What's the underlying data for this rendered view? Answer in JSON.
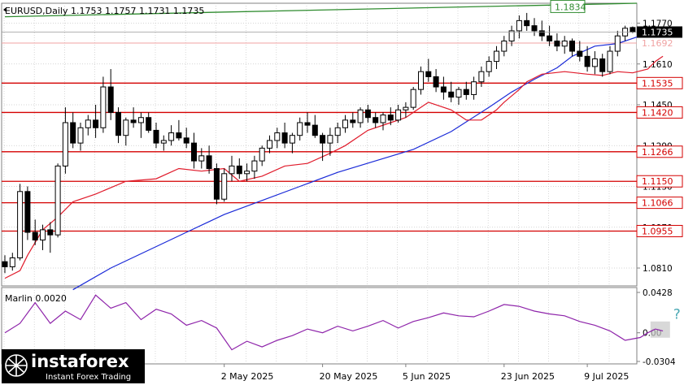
{
  "chart_data": {
    "type": "candlestick",
    "header": "EURUSD,Daily  1.1753 1.1757 1.1731 1.1735",
    "price_axis": {
      "min": 1.074,
      "max": 1.1848,
      "ticks": [
        "1.1770",
        "1.1610",
        "1.1450",
        "1.1290",
        "1.1130",
        "1.0970",
        "1.0810"
      ],
      "tick_values": [
        1.177,
        1.161,
        1.145,
        1.129,
        1.113,
        1.097,
        1.081
      ],
      "current_price_label": "1.1735",
      "current_price": 1.1735,
      "ask_label": "1.1692",
      "ask_price": 1.1692
    },
    "x_axis": {
      "labels": [
        "2 May 2025",
        "20 May 2025",
        "5 Jun 2025",
        "23 Jun 2025",
        "9 Jul 2025"
      ],
      "label_bars": [
        29,
        42,
        53,
        66,
        77
      ]
    },
    "horizontal_levels": [
      {
        "label": "1.1535",
        "value": 1.1535
      },
      {
        "label": "1.1420",
        "value": 1.142
      },
      {
        "label": "1.1266",
        "value": 1.1266
      },
      {
        "label": "1.1150",
        "value": 1.115
      },
      {
        "label": "1.1066",
        "value": 1.1066
      },
      {
        "label": "1.0955",
        "value": 1.0955
      }
    ],
    "trend_line": {
      "label": "1.1834",
      "start": [
        0,
        1.1795
      ],
      "end": [
        99,
        1.1848
      ]
    },
    "candles_ohlc": [
      [
        1.0835,
        1.086,
        1.079,
        1.0815
      ],
      [
        1.0815,
        1.087,
        1.08,
        1.085
      ],
      [
        1.085,
        1.114,
        1.084,
        1.111
      ],
      [
        1.111,
        1.113,
        1.092,
        1.095
      ],
      [
        1.095,
        1.1,
        1.09,
        1.092
      ],
      [
        1.092,
        1.098,
        1.088,
        1.096
      ],
      [
        1.096,
        1.099,
        1.087,
        1.094
      ],
      [
        1.094,
        1.122,
        1.093,
        1.121
      ],
      [
        1.121,
        1.144,
        1.118,
        1.138
      ],
      [
        1.138,
        1.142,
        1.128,
        1.13
      ],
      [
        1.13,
        1.138,
        1.127,
        1.136
      ],
      [
        1.136,
        1.141,
        1.133,
        1.139
      ],
      [
        1.139,
        1.145,
        1.132,
        1.136
      ],
      [
        1.136,
        1.156,
        1.134,
        1.152
      ],
      [
        1.152,
        1.159,
        1.139,
        1.142
      ],
      [
        1.142,
        1.144,
        1.13,
        1.133
      ],
      [
        1.133,
        1.14,
        1.129,
        1.139
      ],
      [
        1.139,
        1.144,
        1.136,
        1.138
      ],
      [
        1.138,
        1.142,
        1.132,
        1.14
      ],
      [
        1.14,
        1.142,
        1.134,
        1.135
      ],
      [
        1.135,
        1.138,
        1.128,
        1.13
      ],
      [
        1.13,
        1.133,
        1.127,
        1.131
      ],
      [
        1.131,
        1.137,
        1.129,
        1.134
      ],
      [
        1.134,
        1.139,
        1.131,
        1.132
      ],
      [
        1.132,
        1.136,
        1.128,
        1.13
      ],
      [
        1.13,
        1.134,
        1.12,
        1.123
      ],
      [
        1.123,
        1.128,
        1.12,
        1.125
      ],
      [
        1.125,
        1.129,
        1.118,
        1.12
      ],
      [
        1.12,
        1.122,
        1.106,
        1.108
      ],
      [
        1.108,
        1.12,
        1.107,
        1.118
      ],
      [
        1.118,
        1.125,
        1.115,
        1.121
      ],
      [
        1.121,
        1.124,
        1.116,
        1.118
      ],
      [
        1.118,
        1.122,
        1.115,
        1.119
      ],
      [
        1.119,
        1.125,
        1.116,
        1.123
      ],
      [
        1.123,
        1.129,
        1.121,
        1.128
      ],
      [
        1.128,
        1.133,
        1.126,
        1.131
      ],
      [
        1.131,
        1.136,
        1.128,
        1.134
      ],
      [
        1.134,
        1.138,
        1.128,
        1.13
      ],
      [
        1.13,
        1.134,
        1.126,
        1.133
      ],
      [
        1.133,
        1.14,
        1.131,
        1.138
      ],
      [
        1.138,
        1.142,
        1.134,
        1.137
      ],
      [
        1.137,
        1.141,
        1.132,
        1.133
      ],
      [
        1.133,
        1.134,
        1.123,
        1.13
      ],
      [
        1.13,
        1.136,
        1.125,
        1.133
      ],
      [
        1.133,
        1.138,
        1.13,
        1.136
      ],
      [
        1.136,
        1.141,
        1.134,
        1.139
      ],
      [
        1.139,
        1.142,
        1.136,
        1.138
      ],
      [
        1.138,
        1.144,
        1.136,
        1.143
      ],
      [
        1.143,
        1.145,
        1.138,
        1.14
      ],
      [
        1.14,
        1.142,
        1.136,
        1.138
      ],
      [
        1.138,
        1.142,
        1.135,
        1.141
      ],
      [
        1.141,
        1.144,
        1.137,
        1.139
      ],
      [
        1.139,
        1.145,
        1.138,
        1.143
      ],
      [
        1.143,
        1.146,
        1.14,
        1.144
      ],
      [
        1.144,
        1.152,
        1.143,
        1.151
      ],
      [
        1.151,
        1.16,
        1.149,
        1.158
      ],
      [
        1.158,
        1.163,
        1.154,
        1.156
      ],
      [
        1.156,
        1.159,
        1.15,
        1.152
      ],
      [
        1.152,
        1.156,
        1.147,
        1.15
      ],
      [
        1.15,
        1.154,
        1.146,
        1.148
      ],
      [
        1.148,
        1.152,
        1.145,
        1.151
      ],
      [
        1.151,
        1.154,
        1.147,
        1.149
      ],
      [
        1.149,
        1.156,
        1.147,
        1.154
      ],
      [
        1.154,
        1.16,
        1.152,
        1.158
      ],
      [
        1.158,
        1.164,
        1.156,
        1.162
      ],
      [
        1.162,
        1.168,
        1.159,
        1.166
      ],
      [
        1.166,
        1.172,
        1.164,
        1.17
      ],
      [
        1.17,
        1.176,
        1.168,
        1.174
      ],
      [
        1.174,
        1.18,
        1.171,
        1.178
      ],
      [
        1.178,
        1.181,
        1.174,
        1.176
      ],
      [
        1.176,
        1.179,
        1.172,
        1.174
      ],
      [
        1.174,
        1.178,
        1.17,
        1.172
      ],
      [
        1.172,
        1.176,
        1.168,
        1.17
      ],
      [
        1.17,
        1.173,
        1.166,
        1.168
      ],
      [
        1.168,
        1.172,
        1.165,
        1.17
      ],
      [
        1.17,
        1.171,
        1.164,
        1.166
      ],
      [
        1.166,
        1.17,
        1.162,
        1.164
      ],
      [
        1.164,
        1.168,
        1.158,
        1.16
      ],
      [
        1.16,
        1.166,
        1.157,
        1.163
      ],
      [
        1.163,
        1.165,
        1.156,
        1.158
      ],
      [
        1.158,
        1.168,
        1.157,
        1.166
      ],
      [
        1.166,
        1.174,
        1.164,
        1.172
      ],
      [
        1.172,
        1.176,
        1.17,
        1.175
      ],
      [
        1.1753,
        1.1757,
        1.1731,
        1.1735
      ]
    ],
    "ma_blue": [
      [
        9,
        1.0725
      ],
      [
        14,
        1.081
      ],
      [
        19,
        1.088
      ],
      [
        24,
        1.095
      ],
      [
        29,
        1.102
      ],
      [
        34,
        1.1075
      ],
      [
        39,
        1.113
      ],
      [
        44,
        1.1185
      ],
      [
        49,
        1.123
      ],
      [
        54,
        1.1275
      ],
      [
        59,
        1.1345
      ],
      [
        64,
        1.144
      ],
      [
        67,
        1.15
      ],
      [
        70,
        1.155
      ],
      [
        73,
        1.1595
      ],
      [
        75,
        1.164
      ],
      [
        78,
        1.168
      ],
      [
        81,
        1.169
      ],
      [
        84,
        1.172
      ],
      [
        87,
        1.174
      ]
    ],
    "envelope_red": [
      [
        0,
        1.077
      ],
      [
        2,
        1.08
      ],
      [
        3,
        1.086
      ],
      [
        5,
        1.096
      ],
      [
        7,
        1.101
      ],
      [
        9,
        1.107
      ],
      [
        12,
        1.11
      ],
      [
        16,
        1.115
      ],
      [
        20,
        1.116
      ],
      [
        23,
        1.12
      ],
      [
        26,
        1.119
      ],
      [
        29,
        1.12
      ],
      [
        31,
        1.115
      ],
      [
        34,
        1.117
      ],
      [
        37,
        1.121
      ],
      [
        40,
        1.122
      ],
      [
        43,
        1.126
      ],
      [
        45,
        1.129
      ],
      [
        48,
        1.135
      ],
      [
        51,
        1.138
      ],
      [
        53,
        1.14
      ],
      [
        55,
        1.144
      ],
      [
        56,
        1.146
      ],
      [
        59,
        1.143
      ],
      [
        61,
        1.139
      ],
      [
        63,
        1.139
      ],
      [
        65,
        1.143
      ],
      [
        66,
        1.146
      ],
      [
        68,
        1.151
      ],
      [
        69,
        1.154
      ],
      [
        71,
        1.157
      ],
      [
        74,
        1.158
      ],
      [
        77,
        1.157
      ],
      [
        79,
        1.1565
      ],
      [
        81,
        1.158
      ],
      [
        83,
        1.1575
      ],
      [
        85,
        1.159
      ],
      [
        86,
        1.162
      ],
      [
        87,
        1.164
      ]
    ],
    "indicator": {
      "label": "Marlin 0.0020",
      "axis_ticks": [
        "0.0428",
        "0.00",
        "-0.0304"
      ],
      "axis_values": [
        0.0428,
        0.0,
        -0.0304
      ],
      "question_mark": "?",
      "values": [
        [
          0,
          0.0
        ],
        [
          2,
          0.01
        ],
        [
          4,
          0.032
        ],
        [
          6,
          0.01
        ],
        [
          8,
          0.023
        ],
        [
          10,
          0.014
        ],
        [
          12,
          0.04
        ],
        [
          14,
          0.026
        ],
        [
          16,
          0.032
        ],
        [
          18,
          0.014
        ],
        [
          20,
          0.025
        ],
        [
          22,
          0.02
        ],
        [
          24,
          0.008
        ],
        [
          26,
          0.013
        ],
        [
          28,
          0.005
        ],
        [
          30,
          -0.018
        ],
        [
          32,
          -0.009
        ],
        [
          34,
          -0.015
        ],
        [
          36,
          -0.008
        ],
        [
          38,
          -0.003
        ],
        [
          40,
          0.004
        ],
        [
          42,
          0.0
        ],
        [
          44,
          0.007
        ],
        [
          46,
          0.002
        ],
        [
          48,
          0.007
        ],
        [
          50,
          0.013
        ],
        [
          52,
          0.005
        ],
        [
          54,
          0.012
        ],
        [
          56,
          0.016
        ],
        [
          58,
          0.021
        ],
        [
          60,
          0.018
        ],
        [
          62,
          0.017
        ],
        [
          64,
          0.023
        ],
        [
          66,
          0.03
        ],
        [
          68,
          0.028
        ],
        [
          70,
          0.023
        ],
        [
          72,
          0.02
        ],
        [
          74,
          0.018
        ],
        [
          76,
          0.012
        ],
        [
          78,
          0.008
        ],
        [
          80,
          0.002
        ],
        [
          82,
          -0.008
        ],
        [
          84,
          -0.005
        ],
        [
          85,
          0.0
        ],
        [
          86,
          0.004
        ],
        [
          87,
          0.002
        ]
      ]
    },
    "colors": {
      "bull": "#ffffff",
      "bear": "#000000",
      "level_line": "#d40000",
      "ma_blue": "#1a2ad8",
      "envelope": "#e01b2b",
      "trend": "#2e8b2e",
      "indicator": "#8e24aa",
      "grid": "#c8c8c8",
      "ask": "#f0a3a3"
    },
    "watermark": {
      "brand": "instaforex",
      "tagline": "Instant Forex Trading"
    }
  }
}
